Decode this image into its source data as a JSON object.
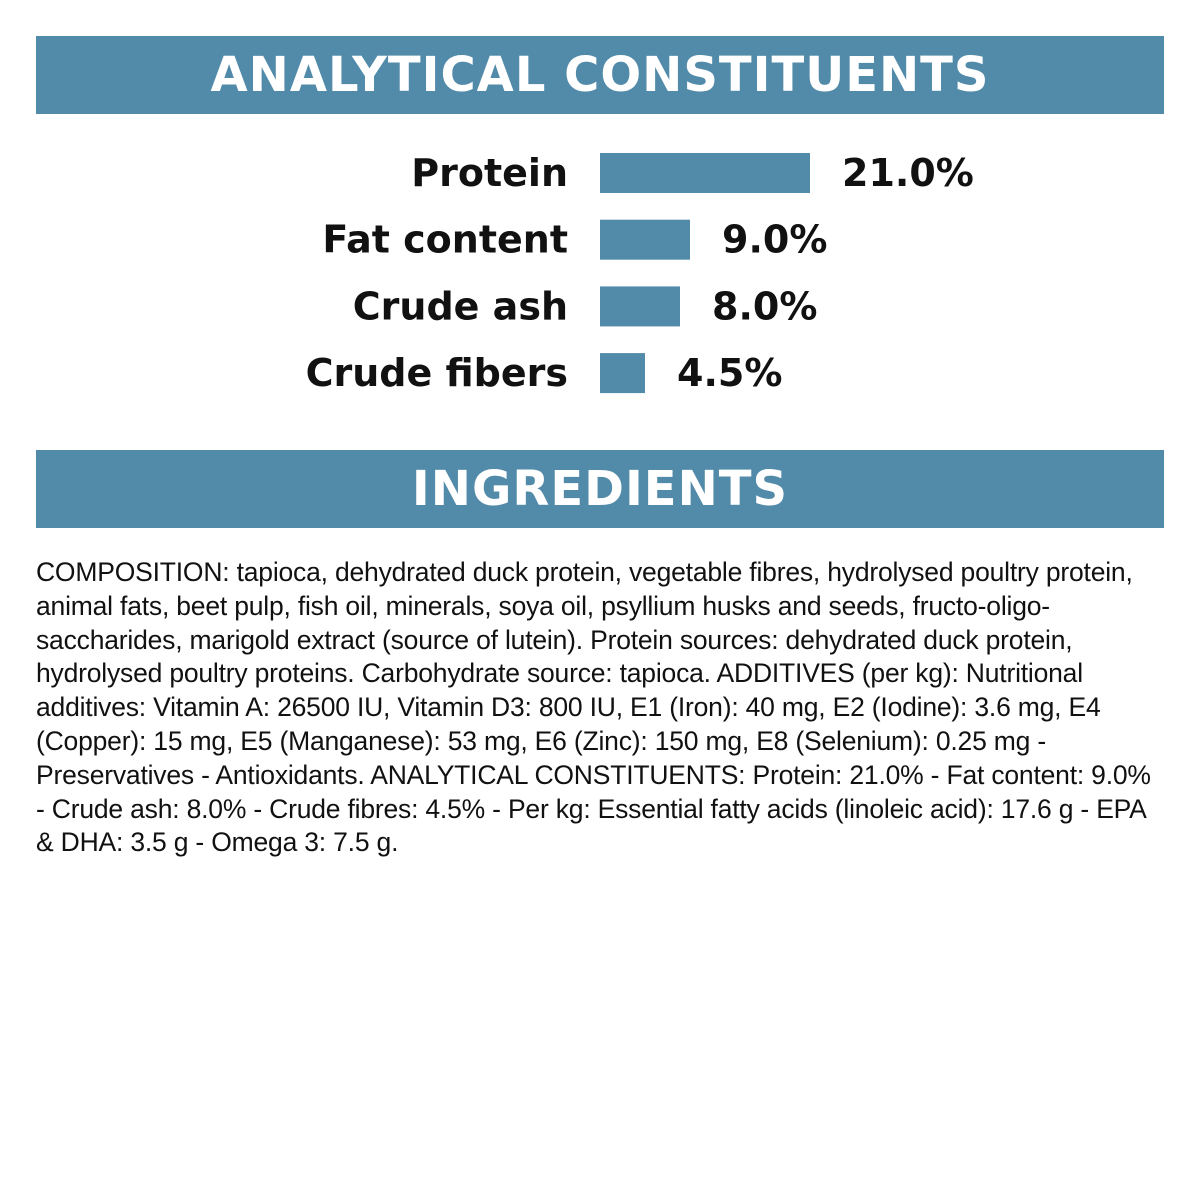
{
  "headings": {
    "analytical": "ANALYTICAL CONSTITUENTS",
    "ingredients": "INGREDIENTS"
  },
  "colors": {
    "banner": "#528ba9",
    "bar": "#528ba9",
    "text": "#111111"
  },
  "chart_data": {
    "type": "bar",
    "orientation": "horizontal",
    "title": "ANALYTICAL CONSTITUENTS",
    "categories": [
      "Protein",
      "Fat content",
      "Crude ash",
      "Crude fibers"
    ],
    "values": [
      21.0,
      9.0,
      8.0,
      4.5
    ],
    "value_labels": [
      "21.0%",
      "9.0%",
      "8.0%",
      "4.5%"
    ],
    "unit": "%",
    "xlabel": "",
    "ylabel": "",
    "xlim": [
      0,
      21.0
    ],
    "grid": false,
    "legend": "none"
  },
  "ingredients": {
    "composition": "COMPOSITION: tapioca, dehydrated duck protein, vegetable fibres, hydrolysed poultry protein, animal fats, beet pulp, fish oil, minerals, soya oil, psyllium husks and seeds, fructo-oligo-saccharides, marigold extract (source of lutein). Protein sources: dehydrated duck protein, hydrolysed poultry proteins. Carbohydrate source: tapioca. ADDITIVES (per kg): Nutritional additives: Vitamin A: 26500 IU, Vitamin D3: 800 IU, E1 (Iron): 40 mg, E2 (Iodine): 3.6 mg, E4 (Copper): 15 mg, E5 (Manganese): 53 mg, E6 (Zinc): 150 mg, E8 (Selenium): 0.25 mg - Preservatives - Antioxidants. ANALYTICAL CONSTITUENTS: Protein: 21.0% - Fat content: 9.0% - Crude ash: 8.0% - Crude fibres: 4.5% - Per kg: Essential fatty acids (linoleic acid): 17.6 g - EPA & DHA: 3.5 g - Omega 3: 7.5 g."
  }
}
